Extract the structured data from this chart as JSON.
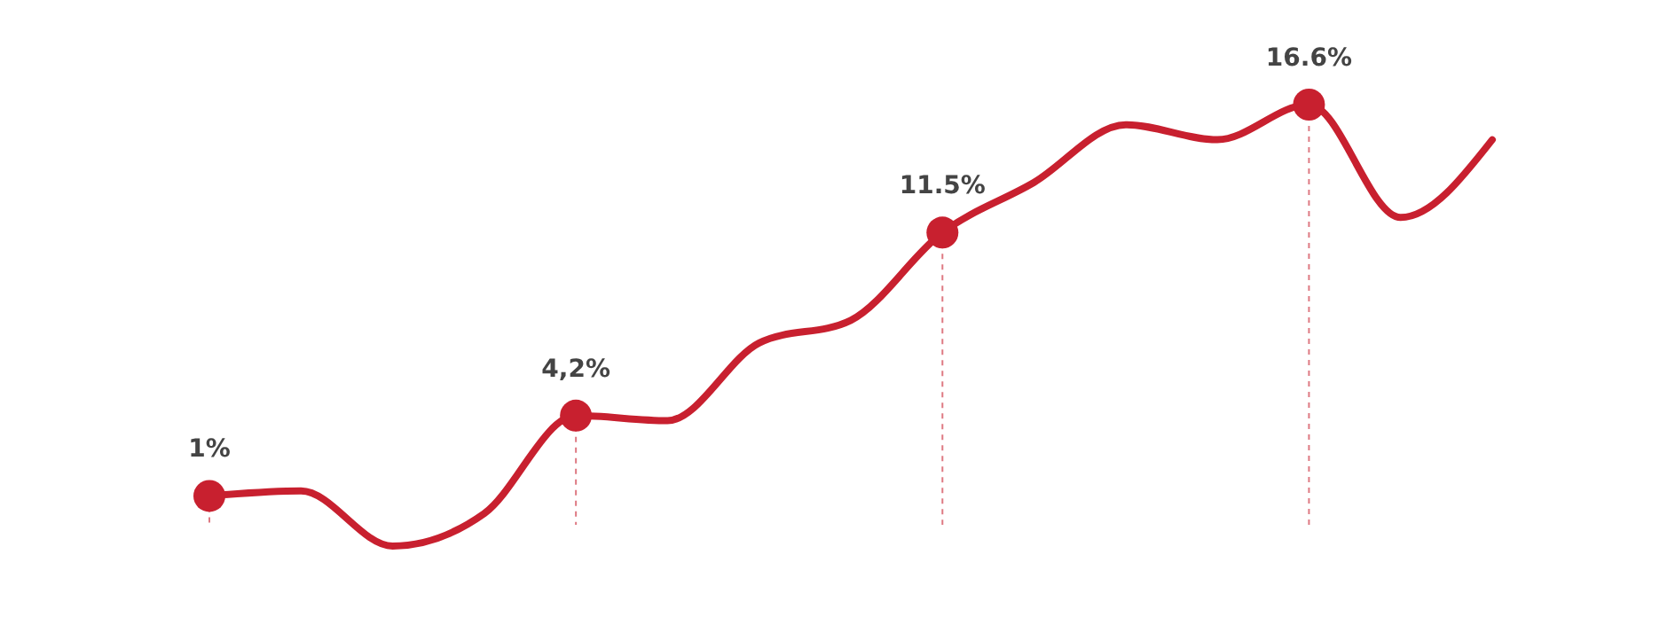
{
  "chart_data": {
    "type": "line",
    "categories": [
      null,
      null,
      null,
      null,
      null,
      null,
      null,
      null,
      null,
      null,
      null,
      null,
      null,
      null,
      null
    ],
    "series": [
      {
        "color": "#c8202f",
        "values": [
          1,
          1.2,
          -1.0,
          0.3,
          4.2,
          4.0,
          7.1,
          8.0,
          11.5,
          13.5,
          15.8,
          15.2,
          16.6,
          12.1,
          15.2
        ],
        "value_labels": [
          "1%",
          null,
          null,
          null,
          "4,2%",
          null,
          null,
          null,
          "11.5%",
          null,
          null,
          null,
          "16.6%",
          null,
          null
        ]
      }
    ]
  }
}
